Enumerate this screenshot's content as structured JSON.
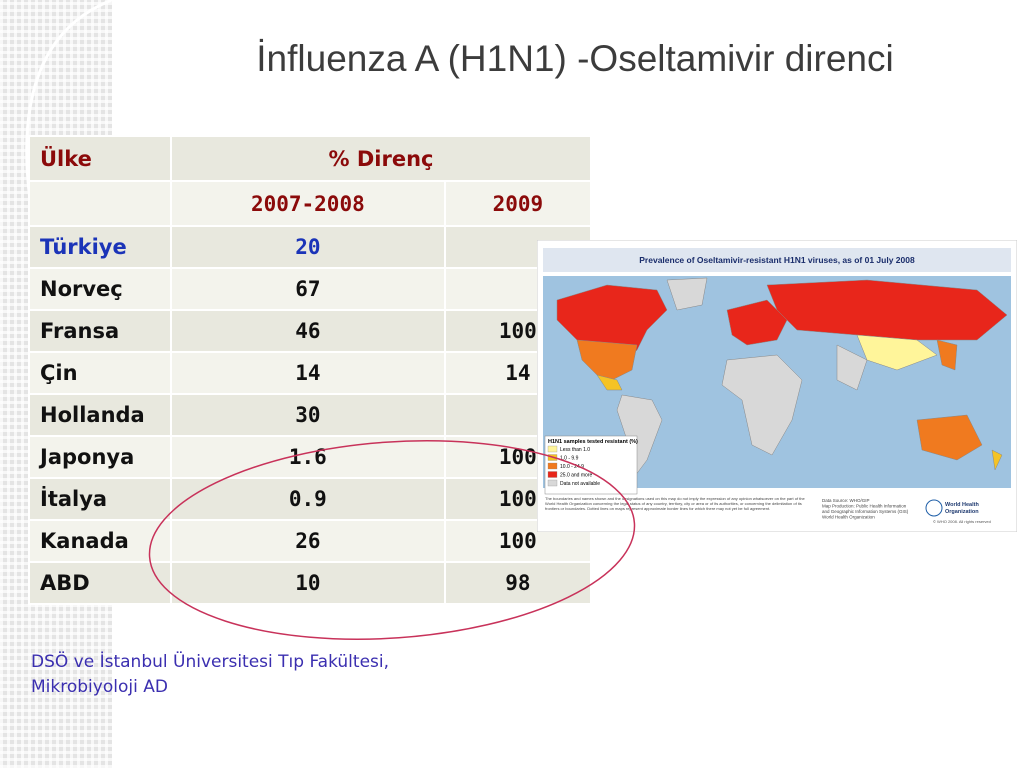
{
  "title": "İnfluenza A (H1N1) -Oseltamivir direnci",
  "table": {
    "header": [
      "Ülke",
      "% Direnç"
    ],
    "subheader": [
      "2007-2008",
      "2009"
    ],
    "rows": [
      [
        "Türkiye",
        20,
        null
      ],
      [
        "Norveç",
        67,
        null
      ],
      [
        "Fransa",
        46,
        100
      ],
      [
        "Çin",
        14,
        14
      ],
      [
        "Hollanda",
        30,
        null
      ],
      [
        "Japonya",
        1.6,
        100
      ],
      [
        "İtalya",
        0.9,
        100
      ],
      [
        "Kanada",
        26,
        100
      ],
      [
        "ABD",
        10,
        98
      ]
    ]
  },
  "map": {
    "title": "Prevalence of Oseltamivir-resistant H1N1 viruses, as of 01 July 2008",
    "legend_title": "H1N1 samples tested resistant (%)",
    "legend": [
      "Less than 1.0",
      "1.0 - 9.9",
      "10.0 - 24.9",
      "25.0 and more",
      "Data not available"
    ],
    "disclaimer": "The boundaries and names shown and the designations used on this map do not imply the expression of any opinion whatsoever on the part of the World Health Organization concerning the legal status of any country, territory, city or area or of its authorities, or concerning the delimitation of its frontiers or boundaries. Dotted lines on maps represent approximate border lines for which there may not yet be full agreement.",
    "source": [
      "Data Source: WHO/GIP",
      "Map Production: Public Health Information",
      "and Geographic Information Systems (GIS)",
      "World Health Organization"
    ],
    "logo": [
      "World Health",
      "Organization"
    ],
    "copyright": "© WHO 2008. All rights reserved"
  },
  "caption": [
    "DSÖ ve İstanbul Üniversitesi Tıp Fakültesi,",
    "Mikrobiyoloji AD"
  ]
}
